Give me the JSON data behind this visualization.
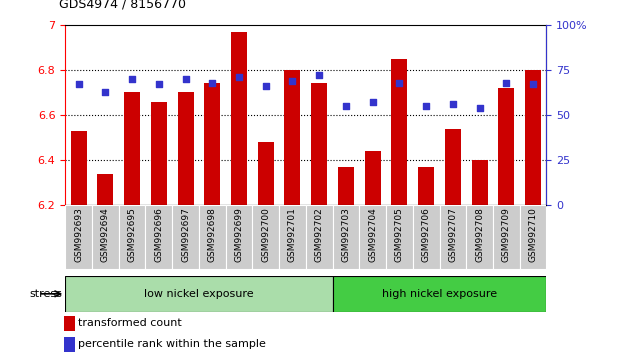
{
  "title": "GDS4974 / 8156770",
  "samples": [
    "GSM992693",
    "GSM992694",
    "GSM992695",
    "GSM992696",
    "GSM992697",
    "GSM992698",
    "GSM992699",
    "GSM992700",
    "GSM992701",
    "GSM992702",
    "GSM992703",
    "GSM992704",
    "GSM992705",
    "GSM992706",
    "GSM992707",
    "GSM992708",
    "GSM992709",
    "GSM992710"
  ],
  "bar_values": [
    6.53,
    6.34,
    6.7,
    6.66,
    6.7,
    6.74,
    6.97,
    6.48,
    6.8,
    6.74,
    6.37,
    6.44,
    6.85,
    6.37,
    6.54,
    6.4,
    6.72,
    6.8
  ],
  "dot_values": [
    67,
    63,
    70,
    67,
    70,
    68,
    71,
    66,
    69,
    72,
    55,
    57,
    68,
    55,
    56,
    54,
    68,
    67
  ],
  "bar_color": "#cc0000",
  "dot_color": "#3333cc",
  "ymin": 6.2,
  "ymax": 7.0,
  "y_ticks": [
    6.2,
    6.4,
    6.6,
    6.8,
    7.0
  ],
  "y_tick_labels": [
    "6.2",
    "6.4",
    "6.6",
    "6.8",
    "7"
  ],
  "y2_ticks": [
    0,
    25,
    50,
    75,
    100
  ],
  "y2_labels": [
    "0",
    "25",
    "50",
    "75",
    "100%"
  ],
  "grid_lines": [
    6.4,
    6.6,
    6.8
  ],
  "low_nickel_count": 10,
  "high_nickel_count": 8,
  "group_labels": [
    "low nickel exposure",
    "high nickel exposure"
  ],
  "group_color_low": "#aaddaa",
  "group_color_high": "#44cc44",
  "stress_label": "stress",
  "legend_bar_label": "transformed count",
  "legend_dot_label": "percentile rank within the sample",
  "bar_bottom": 6.2,
  "xtick_bg_color": "#cccccc",
  "bar_width": 0.6
}
